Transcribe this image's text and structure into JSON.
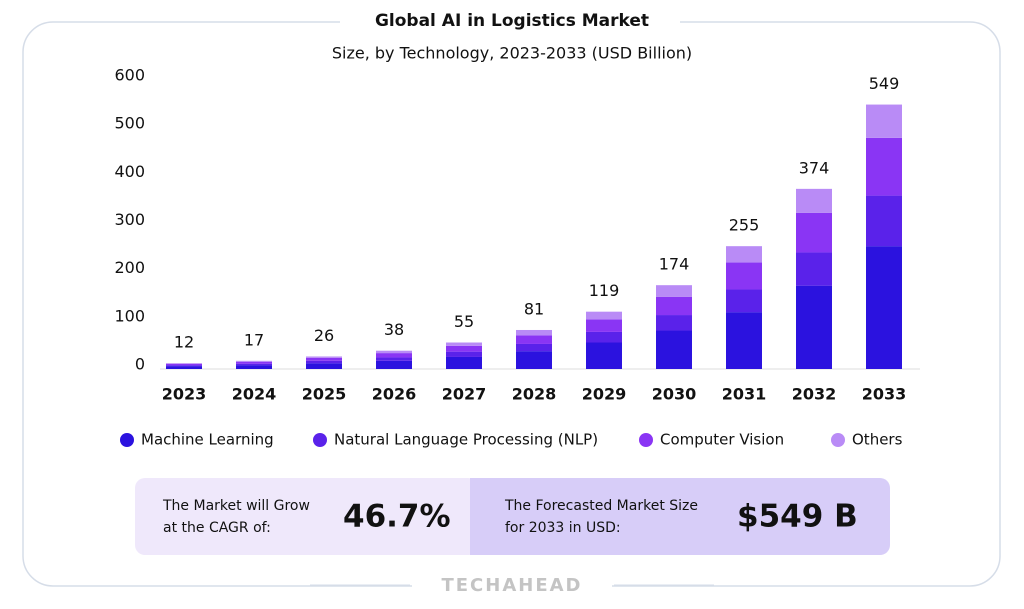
{
  "chart_data": {
    "type": "stacked_bar",
    "title": "Global AI in Logistics Market",
    "subtitle": "Size, by Technology, 2023-2033 (USD Billion)",
    "categories": [
      "2023",
      "2024",
      "2025",
      "2026",
      "2027",
      "2028",
      "2029",
      "2030",
      "2031",
      "2032",
      "2033"
    ],
    "series": [
      {
        "name": "Machine Learning",
        "color": "#2b12df",
        "values": [
          6,
          8,
          12,
          17,
          25,
          37,
          55,
          80,
          118,
          173,
          255
        ]
      },
      {
        "name": "Natural Language Processing (NLP)",
        "color": "#5a22ea",
        "values": [
          2,
          3,
          5,
          7,
          11,
          15,
          22,
          32,
          47,
          69,
          105
        ]
      },
      {
        "name": "Computer Vision",
        "color": "#8a35f4",
        "values": [
          3,
          4,
          6,
          9,
          12,
          18,
          26,
          38,
          56,
          82,
          120
        ]
      },
      {
        "name": "Others",
        "color": "#b98bf6",
        "values": [
          1,
          2,
          3,
          5,
          7,
          11,
          16,
          24,
          34,
          50,
          69
        ]
      }
    ],
    "totals": [
      12,
      17,
      26,
      38,
      55,
      81,
      119,
      174,
      255,
      374,
      549
    ],
    "ylim": [
      0,
      600
    ],
    "yticks": [
      0,
      100,
      200,
      300,
      400,
      500,
      600
    ],
    "grid": false
  },
  "summary": {
    "cagr": {
      "lines": [
        "The Market will Grow",
        "at the CAGR of:"
      ],
      "value": "46.7%"
    },
    "forecast": {
      "lines": [
        "The Forecasted Market Size",
        "for 2033 in USD:"
      ],
      "value": "$549 B"
    }
  },
  "brand": "TECHAHEAD"
}
